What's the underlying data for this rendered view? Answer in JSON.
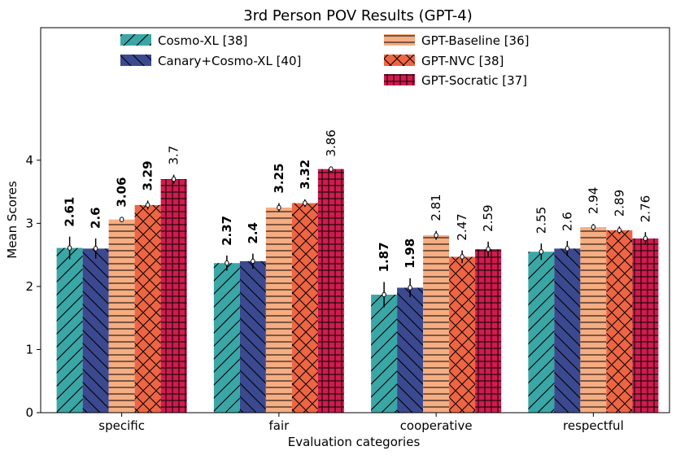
{
  "chart_data": {
    "type": "bar",
    "title": "3rd Person POV Results (GPT-4)",
    "xlabel": "Evaluation categories",
    "ylabel": "Mean Scores",
    "ylim": [
      0,
      6.1
    ],
    "yticks": [
      0,
      1,
      2,
      3,
      4
    ],
    "categories": [
      "specific",
      "fair",
      "cooperative",
      "respectful"
    ],
    "series": [
      {
        "name": "Cosmo-XL [38]",
        "color": "#3aa6a6",
        "pattern": "forward-diagonal",
        "values": [
          2.61,
          2.37,
          1.87,
          2.55
        ],
        "errors": [
          0.18,
          0.12,
          0.2,
          0.13
        ],
        "labels": [
          "2.61",
          "2.37",
          "1.87",
          "2.55"
        ],
        "bold": [
          true,
          true,
          true,
          false
        ]
      },
      {
        "name": "Canary+Cosmo-XL [40]",
        "color": "#3b4990",
        "pattern": "back-diagonal",
        "values": [
          2.6,
          2.4,
          1.98,
          2.6
        ],
        "errors": [
          0.16,
          0.12,
          0.15,
          0.12
        ],
        "labels": [
          "2.6",
          "2.4",
          "1.98",
          "2.6"
        ],
        "bold": [
          true,
          true,
          true,
          false
        ]
      },
      {
        "name": "GPT-Baseline [36]",
        "color": "#f5ad82",
        "pattern": "horizontal",
        "values": [
          3.06,
          3.25,
          2.81,
          2.94
        ],
        "errors": [
          0.04,
          0.07,
          0.07,
          0.05
        ],
        "labels": [
          "3.06",
          "3.25",
          "2.81",
          "2.94"
        ],
        "bold": [
          true,
          true,
          false,
          false
        ]
      },
      {
        "name": "GPT-NVC [38]",
        "color": "#ee6543",
        "pattern": "cross",
        "values": [
          3.29,
          3.32,
          2.47,
          2.89
        ],
        "errors": [
          0.07,
          0.06,
          0.1,
          0.06
        ],
        "labels": [
          "3.29",
          "3.32",
          "2.47",
          "2.89"
        ],
        "bold": [
          true,
          true,
          false,
          false
        ]
      },
      {
        "name": "GPT-Socratic [37]",
        "color": "#cf1c4e",
        "pattern": "grid",
        "values": [
          3.7,
          3.86,
          2.59,
          2.76
        ],
        "errors": [
          0.07,
          0.04,
          0.12,
          0.1
        ],
        "labels": [
          "3.7",
          "3.86",
          "2.59",
          "2.76"
        ],
        "bold": [
          false,
          false,
          false,
          false
        ]
      }
    ],
    "legend": "top, two columns"
  }
}
